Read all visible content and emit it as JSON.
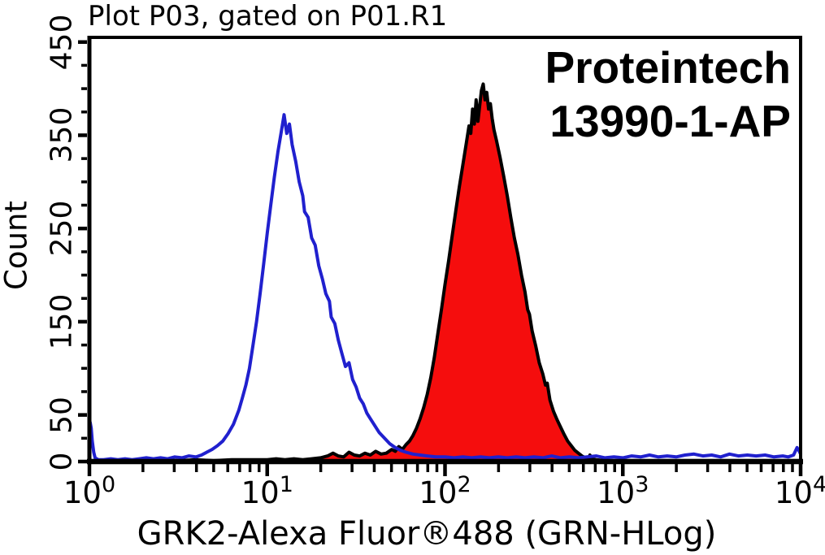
{
  "title": "Plot P03, gated on P01.R1",
  "annotation": {
    "line1": "Proteintech",
    "line2": "13990-1-AP"
  },
  "colors": {
    "background": "#ffffff",
    "axis": "#000000",
    "text": "#000000",
    "control_line": "#2020ce",
    "sample_fill": "#f50d0d",
    "sample_outline": "#000000"
  },
  "chart_data": {
    "type": "area",
    "title": "Plot P03, gated on P01.R1",
    "xlabel": "GRK2-Alexa Fluor®488 (GRN-HLog)",
    "ylabel": "Count",
    "x_scale": "log10",
    "x_tick_base": "10",
    "xlim_exponents": [
      0,
      4
    ],
    "x_major_tick_exponents": [
      0,
      1,
      2,
      3,
      4
    ],
    "y_major_ticks": [
      0,
      50,
      150,
      250,
      350,
      450
    ],
    "y_minor_tick_step": 25,
    "ylim": [
      0,
      455
    ],
    "grid": false,
    "legend": "none",
    "series": [
      {
        "name": "control-blue-outline",
        "type": "line",
        "color": "#2020ce",
        "points_log10_x_count": [
          [
            0.0,
            0
          ],
          [
            0.002,
            18
          ],
          [
            0.004,
            42
          ],
          [
            0.01,
            36
          ],
          [
            0.016,
            22
          ],
          [
            0.024,
            10
          ],
          [
            0.032,
            4
          ],
          [
            0.05,
            2
          ],
          [
            0.08,
            2
          ],
          [
            0.12,
            3
          ],
          [
            0.16,
            2
          ],
          [
            0.2,
            3
          ],
          [
            0.24,
            2
          ],
          [
            0.28,
            3
          ],
          [
            0.32,
            4
          ],
          [
            0.36,
            3
          ],
          [
            0.4,
            4
          ],
          [
            0.44,
            3
          ],
          [
            0.48,
            5
          ],
          [
            0.52,
            4
          ],
          [
            0.56,
            6
          ],
          [
            0.6,
            5
          ],
          [
            0.63,
            7
          ],
          [
            0.66,
            10
          ],
          [
            0.69,
            13
          ],
          [
            0.72,
            17
          ],
          [
            0.75,
            22
          ],
          [
            0.78,
            30
          ],
          [
            0.81,
            40
          ],
          [
            0.84,
            55
          ],
          [
            0.86,
            68
          ],
          [
            0.88,
            82
          ],
          [
            0.9,
            100
          ],
          [
            0.92,
            125
          ],
          [
            0.94,
            150
          ],
          [
            0.96,
            180
          ],
          [
            0.98,
            212
          ],
          [
            1.0,
            245
          ],
          [
            1.02,
            275
          ],
          [
            1.04,
            305
          ],
          [
            1.06,
            332
          ],
          [
            1.08,
            355
          ],
          [
            1.095,
            372
          ],
          [
            1.11,
            352
          ],
          [
            1.125,
            362
          ],
          [
            1.14,
            340
          ],
          [
            1.16,
            322
          ],
          [
            1.18,
            300
          ],
          [
            1.2,
            285
          ],
          [
            1.21,
            268
          ],
          [
            1.23,
            262
          ],
          [
            1.25,
            240
          ],
          [
            1.27,
            232
          ],
          [
            1.29,
            210
          ],
          [
            1.31,
            196
          ],
          [
            1.33,
            180
          ],
          [
            1.35,
            172
          ],
          [
            1.36,
            155
          ],
          [
            1.38,
            148
          ],
          [
            1.4,
            130
          ],
          [
            1.42,
            116
          ],
          [
            1.44,
            102
          ],
          [
            1.46,
            106
          ],
          [
            1.48,
            88
          ],
          [
            1.5,
            80
          ],
          [
            1.52,
            68
          ],
          [
            1.54,
            62
          ],
          [
            1.56,
            52
          ],
          [
            1.58,
            46
          ],
          [
            1.6,
            40
          ],
          [
            1.63,
            31
          ],
          [
            1.66,
            25
          ],
          [
            1.69,
            19
          ],
          [
            1.72,
            15
          ],
          [
            1.75,
            12
          ],
          [
            1.78,
            10
          ],
          [
            1.82,
            8
          ],
          [
            1.86,
            7
          ],
          [
            1.9,
            6
          ],
          [
            1.95,
            5
          ],
          [
            2.0,
            5
          ],
          [
            2.05,
            4
          ],
          [
            2.1,
            5
          ],
          [
            2.15,
            4
          ],
          [
            2.2,
            5
          ],
          [
            2.25,
            4
          ],
          [
            2.3,
            5
          ],
          [
            2.35,
            4
          ],
          [
            2.4,
            5
          ],
          [
            2.45,
            4
          ],
          [
            2.5,
            5
          ],
          [
            2.55,
            4
          ],
          [
            2.6,
            6
          ],
          [
            2.65,
            4
          ],
          [
            2.7,
            5
          ],
          [
            2.75,
            4
          ],
          [
            2.8,
            5
          ],
          [
            2.85,
            6
          ],
          [
            2.9,
            4
          ],
          [
            2.95,
            5
          ],
          [
            3.0,
            4
          ],
          [
            3.05,
            6
          ],
          [
            3.1,
            5
          ],
          [
            3.15,
            7
          ],
          [
            3.2,
            5
          ],
          [
            3.25,
            6
          ],
          [
            3.3,
            5
          ],
          [
            3.35,
            7
          ],
          [
            3.4,
            8
          ],
          [
            3.45,
            6
          ],
          [
            3.5,
            7
          ],
          [
            3.55,
            5
          ],
          [
            3.6,
            8
          ],
          [
            3.65,
            6
          ],
          [
            3.7,
            7
          ],
          [
            3.75,
            6
          ],
          [
            3.8,
            7
          ],
          [
            3.85,
            5
          ],
          [
            3.9,
            6
          ],
          [
            3.93,
            5
          ],
          [
            3.96,
            7
          ],
          [
            3.98,
            15
          ],
          [
            3.99,
            12
          ],
          [
            4.0,
            8
          ]
        ]
      },
      {
        "name": "sample-red-filled",
        "type": "filled_area",
        "fill": "#f50d0d",
        "outline": "#000000",
        "points_log10_x_count": [
          [
            0.0,
            1
          ],
          [
            0.1,
            1
          ],
          [
            0.2,
            2
          ],
          [
            0.3,
            1
          ],
          [
            0.4,
            2
          ],
          [
            0.5,
            1
          ],
          [
            0.6,
            2
          ],
          [
            0.7,
            1
          ],
          [
            0.8,
            2
          ],
          [
            0.9,
            2
          ],
          [
            1.0,
            2
          ],
          [
            1.05,
            3
          ],
          [
            1.1,
            2
          ],
          [
            1.15,
            3
          ],
          [
            1.2,
            2
          ],
          [
            1.25,
            3
          ],
          [
            1.3,
            4
          ],
          [
            1.34,
            6
          ],
          [
            1.37,
            9
          ],
          [
            1.4,
            6
          ],
          [
            1.43,
            5
          ],
          [
            1.46,
            10
          ],
          [
            1.49,
            7
          ],
          [
            1.52,
            6
          ],
          [
            1.55,
            9
          ],
          [
            1.58,
            7
          ],
          [
            1.61,
            11
          ],
          [
            1.64,
            8
          ],
          [
            1.67,
            9
          ],
          [
            1.7,
            13
          ],
          [
            1.72,
            11
          ],
          [
            1.74,
            16
          ],
          [
            1.76,
            13
          ],
          [
            1.78,
            18
          ],
          [
            1.8,
            22
          ],
          [
            1.82,
            28
          ],
          [
            1.84,
            36
          ],
          [
            1.86,
            46
          ],
          [
            1.88,
            58
          ],
          [
            1.9,
            72
          ],
          [
            1.92,
            90
          ],
          [
            1.94,
            112
          ],
          [
            1.96,
            138
          ],
          [
            1.98,
            163
          ],
          [
            2.0,
            190
          ],
          [
            2.02,
            215
          ],
          [
            2.04,
            242
          ],
          [
            2.06,
            268
          ],
          [
            2.08,
            294
          ],
          [
            2.1,
            318
          ],
          [
            2.12,
            342
          ],
          [
            2.135,
            360
          ],
          [
            2.145,
            352
          ],
          [
            2.155,
            378
          ],
          [
            2.165,
            362
          ],
          [
            2.175,
            388
          ],
          [
            2.185,
            365
          ],
          [
            2.195,
            382
          ],
          [
            2.205,
            398
          ],
          [
            2.215,
            405
          ],
          [
            2.225,
            388
          ],
          [
            2.235,
            396
          ],
          [
            2.245,
            378
          ],
          [
            2.255,
            384
          ],
          [
            2.265,
            368
          ],
          [
            2.275,
            356
          ],
          [
            2.29,
            344
          ],
          [
            2.31,
            326
          ],
          [
            2.33,
            306
          ],
          [
            2.35,
            285
          ],
          [
            2.37,
            262
          ],
          [
            2.39,
            240
          ],
          [
            2.41,
            222
          ],
          [
            2.43,
            200
          ],
          [
            2.45,
            182
          ],
          [
            2.465,
            163
          ],
          [
            2.475,
            158
          ],
          [
            2.49,
            140
          ],
          [
            2.51,
            124
          ],
          [
            2.53,
            106
          ],
          [
            2.55,
            94
          ],
          [
            2.565,
            82
          ],
          [
            2.575,
            84
          ],
          [
            2.59,
            66
          ],
          [
            2.61,
            54
          ],
          [
            2.63,
            45
          ],
          [
            2.65,
            37
          ],
          [
            2.67,
            29
          ],
          [
            2.69,
            22
          ],
          [
            2.71,
            17
          ],
          [
            2.73,
            12
          ],
          [
            2.75,
            9
          ],
          [
            2.77,
            6
          ],
          [
            2.79,
            4
          ],
          [
            2.805,
            3
          ],
          [
            2.815,
            7
          ],
          [
            2.825,
            3
          ],
          [
            2.85,
            2
          ],
          [
            2.9,
            1
          ],
          [
            3.0,
            1
          ],
          [
            3.2,
            1
          ],
          [
            3.4,
            1
          ],
          [
            3.6,
            1
          ],
          [
            3.8,
            1
          ],
          [
            4.0,
            1
          ]
        ]
      }
    ]
  }
}
